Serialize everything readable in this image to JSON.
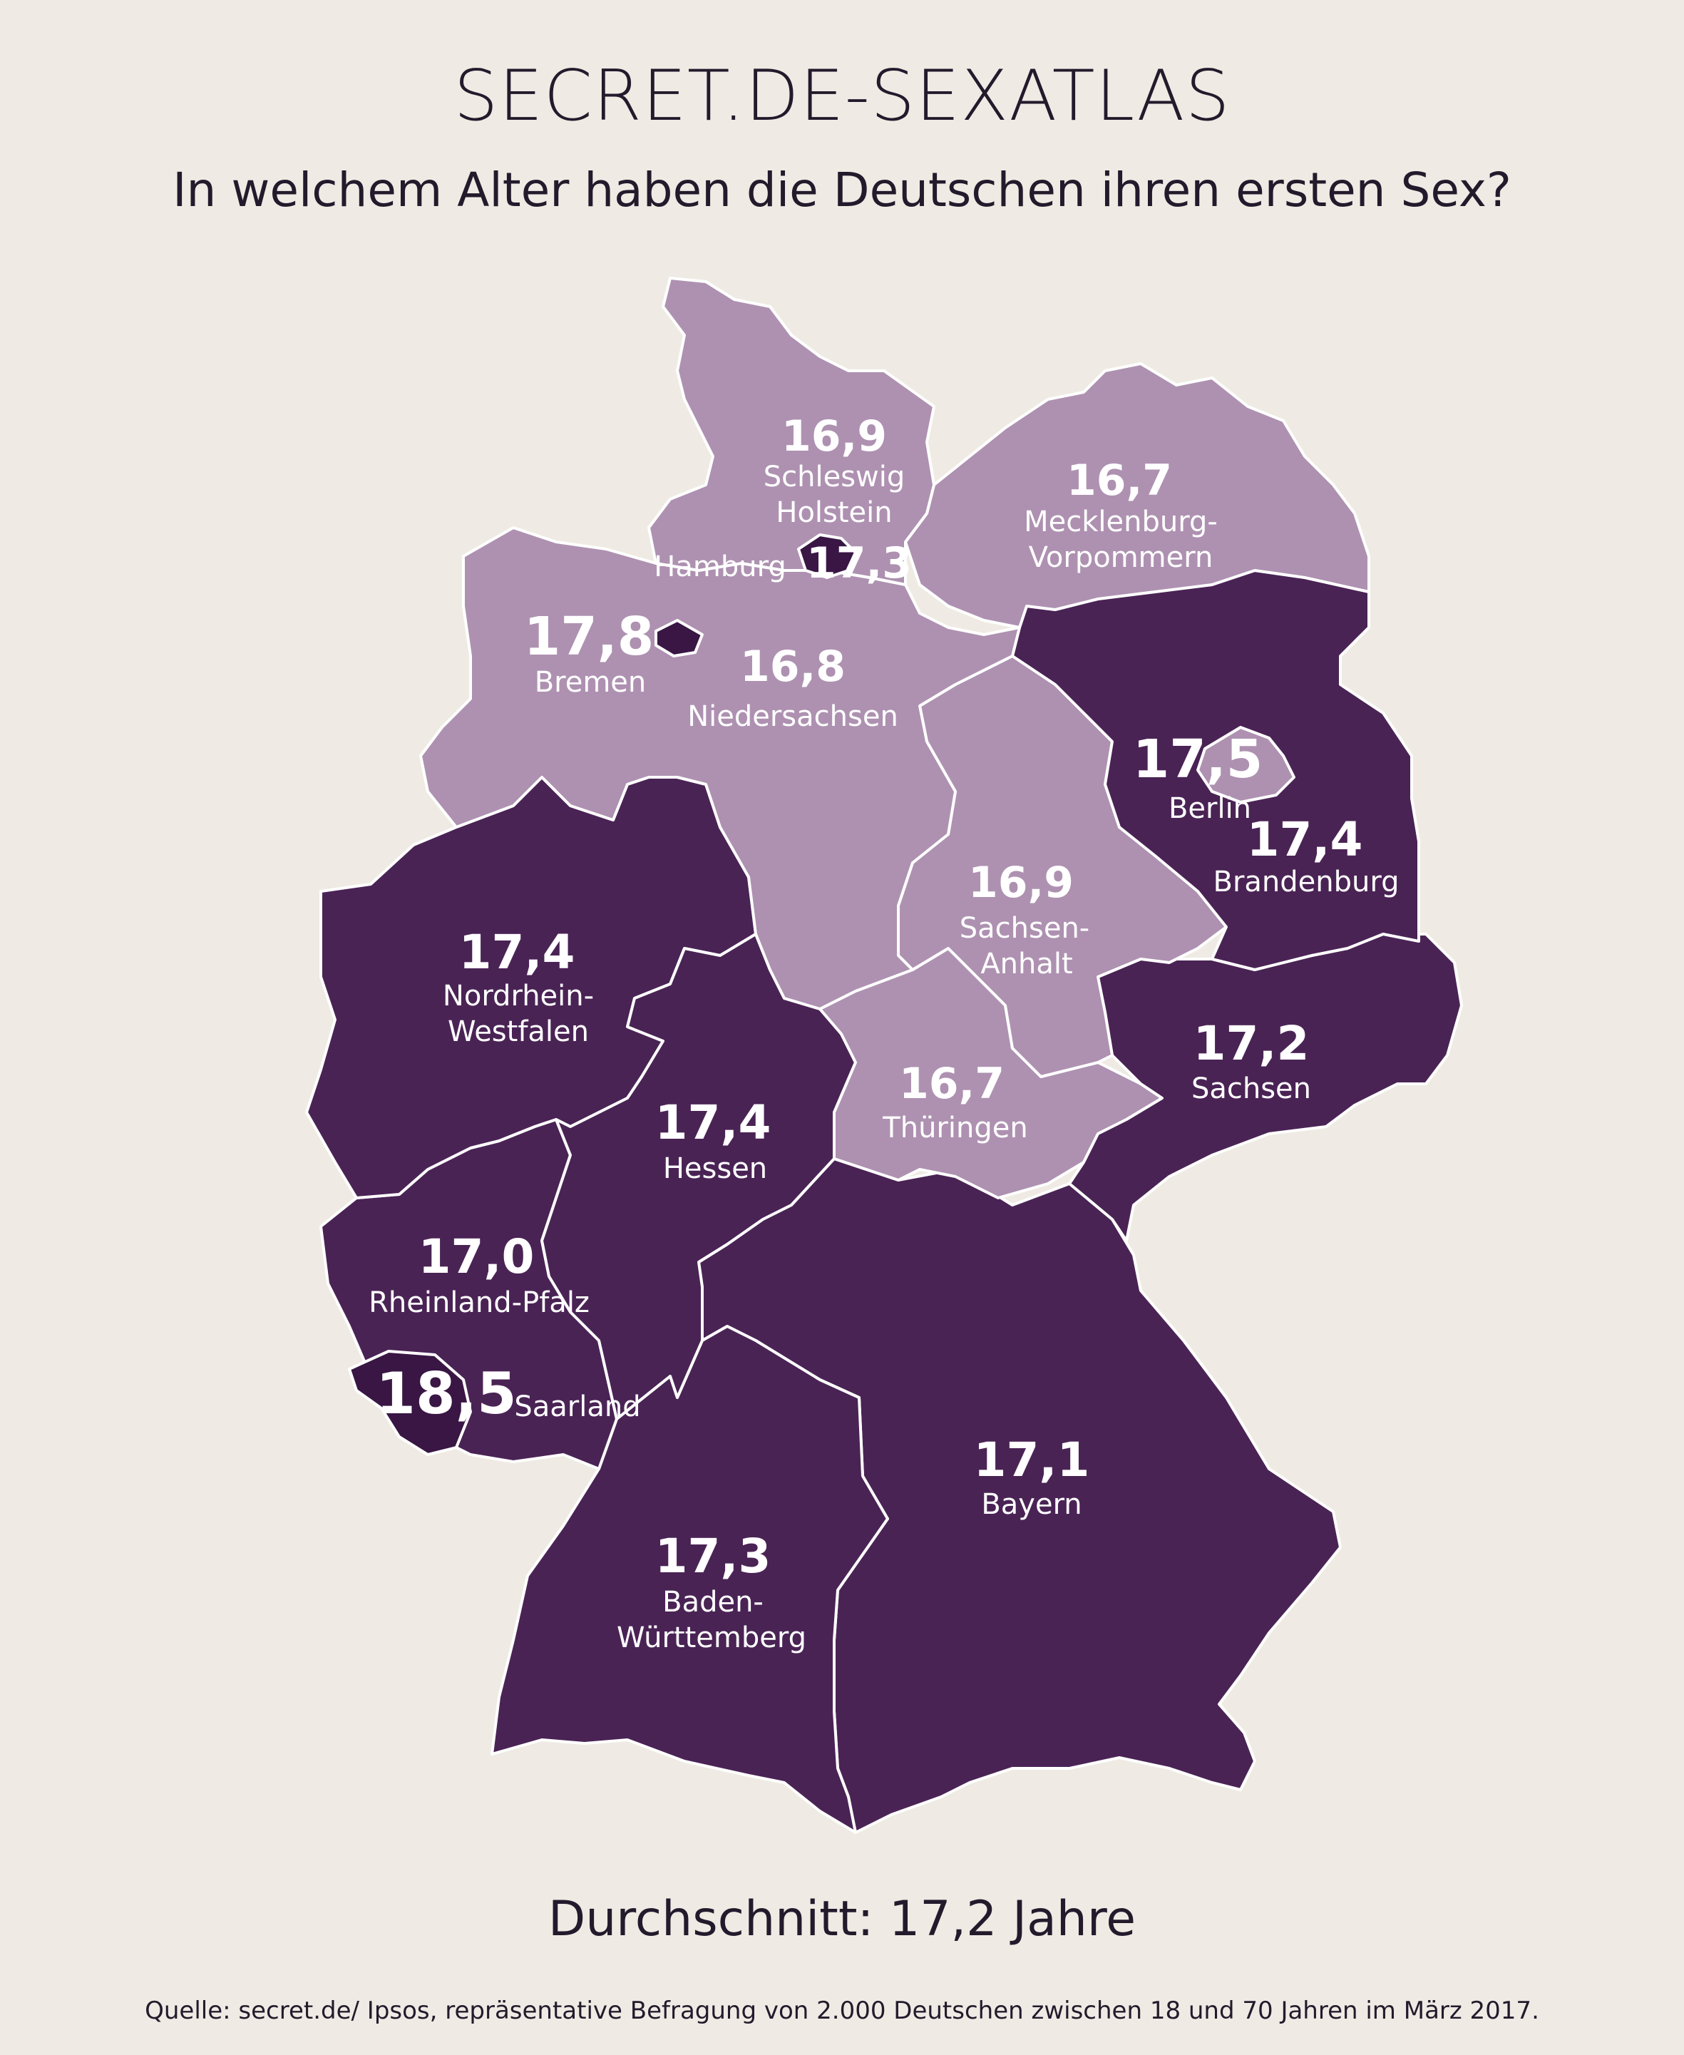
{
  "header": {
    "brand": "SECRET.DE-SEXATLAS",
    "question": "In welchem Alter haben die Deutschen ihren ersten Sex?"
  },
  "colors": {
    "background": "#efebe4",
    "high_value": "#4a2355",
    "low_value": "#ae91b1",
    "city_state": "#391644",
    "text": "#231a2c"
  },
  "states": {
    "schleswig_holstein": {
      "value": "16,9",
      "name_line1": "Schleswig",
      "name_line2": "Holstein"
    },
    "hamburg": {
      "value": "17,3",
      "name": "Hamburg"
    },
    "mecklenburg_vorpommern": {
      "value": "16,7",
      "name_line1": "Mecklenburg-",
      "name_line2": "Vorpommern"
    },
    "bremen": {
      "value": "17,8",
      "name": "Bremen"
    },
    "niedersachsen": {
      "value": "16,8",
      "name": "Niedersachsen"
    },
    "berlin": {
      "value": "17,5",
      "name": "Berlin"
    },
    "brandenburg": {
      "value": "17,4",
      "name": "Brandenburg"
    },
    "sachsen_anhalt": {
      "value": "16,9",
      "name_line1": "Sachsen-",
      "name_line2": "Anhalt"
    },
    "nordrhein_westfalen": {
      "value": "17,4",
      "name_line1": "Nordrhein-",
      "name_line2": "Westfalen"
    },
    "sachsen": {
      "value": "17,2",
      "name": "Sachsen"
    },
    "thueringen": {
      "value": "16,7",
      "name": "Thüringen"
    },
    "hessen": {
      "value": "17,4",
      "name": "Hessen"
    },
    "rheinland_pfalz": {
      "value": "17,0",
      "name": "Rheinland-Pfalz"
    },
    "saarland": {
      "value": "18,5",
      "name": "Saarland"
    },
    "bayern": {
      "value": "17,1",
      "name": "Bayern"
    },
    "baden_wuerttemberg": {
      "value": "17,3",
      "name_line1": "Baden-",
      "name_line2": "Württemberg"
    }
  },
  "footer": {
    "average": "Durchschnitt: 17,2 Jahre",
    "source": "Quelle: secret.de/ Ipsos, repräsentative Befragung von 2.000 Deutschen zwischen 18 und 70 Jahren im März 2017."
  }
}
